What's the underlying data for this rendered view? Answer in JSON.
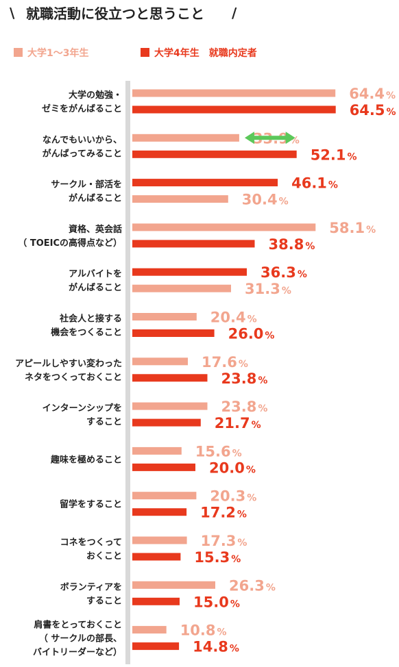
{
  "chart_data": {
    "type": "bar",
    "title": "就職活動に役立つと思うこと",
    "title_deco_left": "\\",
    "title_deco_right": "/",
    "xlim": [
      0,
      100
    ],
    "value_unit": "%",
    "legend_position": "top-left",
    "colors": {
      "light": "#f2a58e",
      "dark": "#e8391d",
      "axis": "#d9d9d9",
      "arrow": "#5cc85a",
      "text": "#222222"
    },
    "categories": [
      [
        "大学の勉強・",
        "ゼミをがんばること"
      ],
      [
        "なんでもいいから、",
        "がんばってみること"
      ],
      [
        "サークル・部活を",
        "がんばること"
      ],
      [
        "資格、英会話",
        "（ TOEICの高得点など）"
      ],
      [
        "アルバイトを",
        "がんばること"
      ],
      [
        "社会人と接する",
        "機会をつくること"
      ],
      [
        "アピールしやすい変わった",
        "ネタをつくっておくこと"
      ],
      [
        "インターンシップを",
        "すること"
      ],
      [
        "趣味を極めること"
      ],
      [
        "留学をすること"
      ],
      [
        "コネをつくって",
        "おくこと"
      ],
      [
        "ボランティアを",
        "すること"
      ],
      [
        "肩書をとっておくこと",
        "（ サークルの部長、",
        "バイトリーダーなど）"
      ]
    ],
    "series": [
      {
        "name": "大学1〜3年生",
        "color": "#f2a58e",
        "values": [
          64.4,
          33.9,
          30.4,
          58.1,
          31.3,
          20.4,
          17.6,
          23.8,
          15.6,
          20.3,
          17.3,
          26.3,
          10.8
        ],
        "labels": [
          "64.4",
          "33.9",
          "30.4",
          "58.1",
          "31.3",
          "20.4",
          "17.6",
          "23.8",
          "15.6",
          "20.3",
          "17.3",
          "26.3",
          "10.8"
        ]
      },
      {
        "name": "大学4年生　就職内定者",
        "color": "#e8391d",
        "values": [
          64.5,
          52.1,
          46.1,
          38.8,
          36.3,
          26.0,
          23.8,
          21.7,
          20.0,
          17.2,
          15.3,
          15.0,
          14.8
        ],
        "labels": [
          "64.5",
          "52.1",
          "46.1",
          "38.8",
          "36.3",
          "26.0",
          "23.8",
          "21.7",
          "20.0",
          "17.2",
          "15.3",
          "15.0",
          "14.8"
        ]
      }
    ],
    "bar_order_per_category": [
      [
        "light",
        "dark"
      ],
      [
        "light",
        "dark"
      ],
      [
        "dark",
        "light"
      ],
      [
        "light",
        "dark"
      ],
      [
        "dark",
        "light"
      ],
      [
        "light",
        "dark"
      ],
      [
        "light",
        "dark"
      ],
      [
        "light",
        "dark"
      ],
      [
        "light",
        "dark"
      ],
      [
        "light",
        "dark"
      ],
      [
        "light",
        "dark"
      ],
      [
        "light",
        "dark"
      ],
      [
        "light",
        "dark"
      ]
    ],
    "highlight_arrow_category_index": 1
  }
}
